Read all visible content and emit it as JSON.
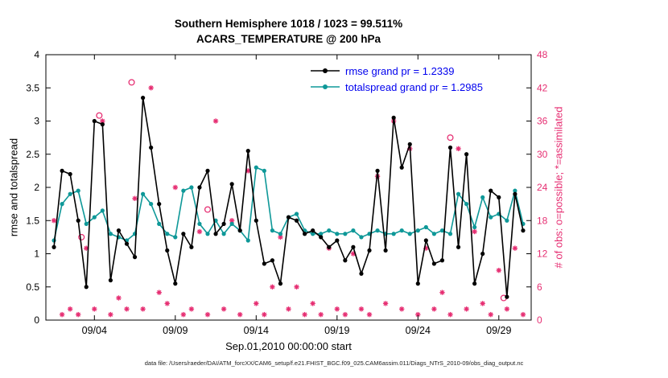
{
  "chart_data": {
    "type": "line",
    "title": "Southern Hemisphere 1018 / 1023 = 99.511%",
    "subtitle": "ACARS_TEMPERATURE @ 200 hPa",
    "xlabel": "Sep.01,2010 00:00:00 start",
    "ylabel_left": "rmse and totalspread",
    "ylabel_right": "# of obs: o=possible; *=assimilated",
    "x_range": [
      1,
      31
    ],
    "y_left_range": [
      0,
      4
    ],
    "y_right_range": [
      0,
      48
    ],
    "x_ticks": {
      "values": [
        4,
        9,
        14,
        19,
        24,
        29
      ],
      "labels": [
        "09/04",
        "09/09",
        "09/14",
        "09/19",
        "09/24",
        "09/29"
      ]
    },
    "y_left_ticks": [
      0,
      0.5,
      1,
      1.5,
      2,
      2.5,
      3,
      3.5,
      4
    ],
    "y_right_ticks": [
      0,
      6,
      12,
      18,
      24,
      30,
      36,
      42,
      48
    ],
    "legend_text_color": "#0000ee",
    "grand_pr": {
      "rmse": 1.2339,
      "totalspread": 1.2985
    },
    "x": [
      1.5,
      2,
      2.5,
      3,
      3.5,
      4,
      4.5,
      5,
      5.5,
      6,
      6.5,
      7,
      7.5,
      8,
      8.5,
      9,
      9.5,
      10,
      10.5,
      11,
      11.5,
      12,
      12.5,
      13,
      13.5,
      14,
      14.5,
      15,
      15.5,
      16,
      16.5,
      17,
      17.5,
      18,
      18.5,
      19,
      19.5,
      20,
      20.5,
      21,
      21.5,
      22,
      22.5,
      23,
      23.5,
      24,
      24.5,
      25,
      25.5,
      26,
      26.5,
      27,
      27.5,
      28,
      28.5,
      29,
      29.5,
      30,
      30.5
    ],
    "series": [
      {
        "name": "rmse",
        "legend": "rmse grand pr = 1.2339",
        "color": "#000000",
        "values": [
          1.1,
          2.25,
          2.2,
          1.5,
          0.5,
          3.0,
          2.95,
          0.6,
          1.35,
          1.15,
          0.95,
          3.35,
          2.6,
          1.75,
          1.05,
          0.55,
          1.3,
          1.1,
          2.0,
          2.25,
          1.3,
          1.45,
          2.05,
          1.35,
          2.55,
          1.5,
          0.85,
          0.9,
          0.55,
          1.55,
          1.5,
          1.3,
          1.35,
          1.25,
          1.1,
          1.2,
          0.9,
          1.1,
          0.7,
          1.05,
          2.25,
          1.05,
          3.05,
          2.3,
          2.65,
          0.55,
          1.2,
          0.85,
          0.9,
          2.6,
          1.1,
          2.5,
          0.55,
          1.0,
          1.95,
          1.85,
          0.35,
          1.9,
          1.35
        ]
      },
      {
        "name": "totalspread",
        "legend": "totalspread grand pr = 1.2985",
        "color": "#0e9898",
        "values": [
          1.2,
          1.75,
          1.9,
          1.95,
          1.45,
          1.55,
          1.65,
          1.3,
          1.25,
          1.2,
          1.3,
          1.9,
          1.75,
          1.45,
          1.3,
          1.25,
          1.95,
          2.0,
          1.45,
          1.3,
          1.5,
          1.3,
          1.45,
          1.35,
          1.2,
          2.3,
          2.25,
          1.35,
          1.3,
          1.55,
          1.6,
          1.35,
          1.3,
          1.3,
          1.35,
          1.3,
          1.3,
          1.35,
          1.25,
          1.3,
          1.35,
          1.3,
          1.3,
          1.35,
          1.3,
          1.35,
          1.4,
          1.3,
          1.35,
          1.3,
          1.9,
          1.75,
          1.4,
          1.85,
          1.55,
          1.6,
          1.5,
          1.95,
          1.45
        ]
      }
    ],
    "obs": {
      "color": "#e62e72",
      "assimilated": [
        18,
        1,
        2,
        1,
        13,
        2,
        36,
        1,
        4,
        2,
        22,
        2,
        42,
        5,
        3,
        24,
        1,
        2,
        16,
        1,
        36,
        2,
        18,
        1,
        27,
        3,
        1,
        6,
        15,
        2,
        6,
        1,
        3,
        1,
        13,
        2,
        1,
        12,
        2,
        1,
        26,
        3,
        36,
        2,
        31,
        1,
        13,
        2,
        5,
        1,
        31,
        2,
        16,
        3,
        1,
        9,
        2,
        13,
        1
      ],
      "possible": {
        "x": [
          3.2,
          4.3,
          6.3,
          11.0,
          26.0,
          29.3
        ],
        "values": [
          15,
          37,
          43,
          20,
          33,
          4
        ]
      }
    }
  },
  "footer": {
    "text": "data file: /Users/raeder/DAI/ATM_forcXX/CAM6_setup/f.e21.FHIST_BGC.f09_025.CAM6assim.011/Diags_NTrS_2010-09/obs_diag_output.nc"
  }
}
